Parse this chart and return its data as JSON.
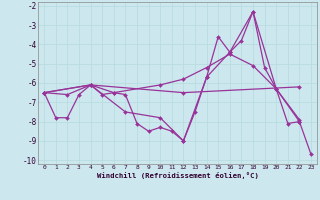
{
  "xlabel": "Windchill (Refroidissement éolien,°C)",
  "xlim": [
    -0.5,
    23.5
  ],
  "ylim": [
    -10.2,
    -1.8
  ],
  "yticks": [
    -10,
    -9,
    -8,
    -7,
    -6,
    -5,
    -4,
    -3,
    -2
  ],
  "xticks": [
    0,
    1,
    2,
    3,
    4,
    5,
    6,
    7,
    8,
    9,
    10,
    11,
    12,
    13,
    14,
    15,
    16,
    17,
    18,
    19,
    20,
    21,
    22,
    23
  ],
  "bg_color": "#cce8ee",
  "line_color": "#993399",
  "grid_color": "#aaddcc",
  "curves": [
    [
      [
        0,
        -6.5
      ],
      [
        1,
        -7.8
      ],
      [
        2,
        -7.8
      ],
      [
        3,
        -6.6
      ],
      [
        4,
        -6.1
      ],
      [
        5,
        -6.6
      ],
      [
        6,
        -6.5
      ],
      [
        7,
        -6.6
      ],
      [
        8,
        -8.1
      ],
      [
        9,
        -8.5
      ],
      [
        10,
        -8.3
      ],
      [
        11,
        -8.5
      ],
      [
        12,
        -9.0
      ],
      [
        13,
        -7.5
      ],
      [
        14,
        -5.7
      ],
      [
        15,
        -3.6
      ],
      [
        16,
        -4.4
      ],
      [
        17,
        -3.8
      ],
      [
        18,
        -2.3
      ],
      [
        19,
        -5.2
      ],
      [
        20,
        -6.3
      ],
      [
        21,
        -8.1
      ],
      [
        22,
        -8.0
      ],
      [
        23,
        -9.7
      ]
    ],
    [
      [
        0,
        -6.5
      ],
      [
        2,
        -6.6
      ],
      [
        4,
        -6.1
      ],
      [
        6,
        -6.5
      ],
      [
        10,
        -6.1
      ],
      [
        12,
        -5.8
      ],
      [
        14,
        -5.2
      ],
      [
        16,
        -4.5
      ],
      [
        18,
        -5.1
      ],
      [
        20,
        -6.3
      ],
      [
        22,
        -7.9
      ]
    ],
    [
      [
        0,
        -6.5
      ],
      [
        4,
        -6.1
      ],
      [
        12,
        -6.5
      ],
      [
        22,
        -6.2
      ]
    ],
    [
      [
        0,
        -6.5
      ],
      [
        4,
        -6.1
      ],
      [
        7,
        -7.5
      ],
      [
        10,
        -7.8
      ],
      [
        12,
        -9.0
      ],
      [
        14,
        -5.7
      ],
      [
        16,
        -4.4
      ],
      [
        18,
        -2.3
      ],
      [
        20,
        -6.3
      ],
      [
        22,
        -8.0
      ]
    ]
  ]
}
